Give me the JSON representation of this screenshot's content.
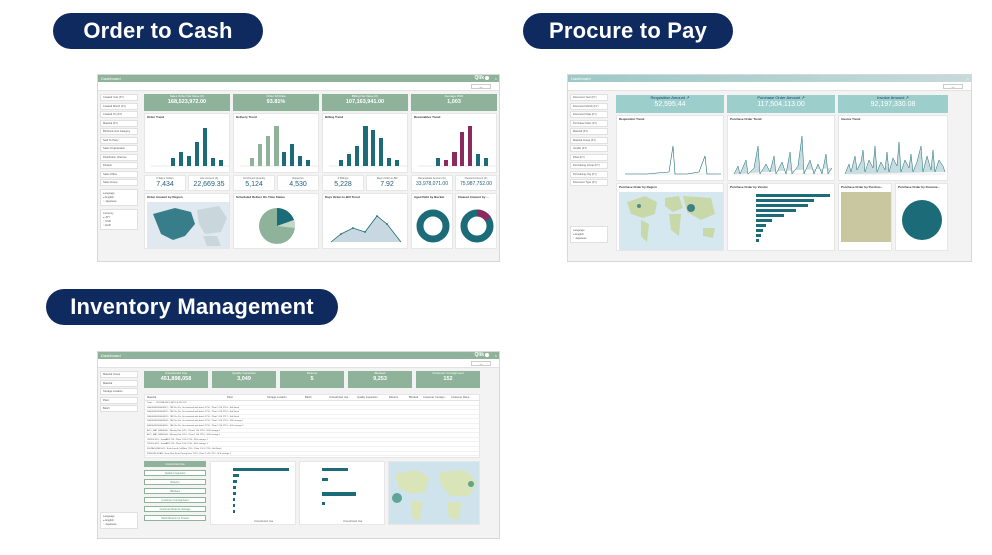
{
  "headings": {
    "otc": "Order to Cash",
    "ptp": "Procure to Pay",
    "inv": "Inventory Management"
  },
  "common": {
    "window_title": "Dashboard",
    "logo": "Qlik",
    "close_glyph": "×",
    "nav_glyph": "‹ ›",
    "language_label": "Language",
    "lang_english": "English",
    "lang_japanese": "Japanese"
  },
  "otc": {
    "filters": [
      "Created Year (FY)",
      "Created Month (FY)",
      "Created On (FY)",
      "Material (FY)",
      "Bill Document Category",
      "Sold To Party",
      "Sales Organization",
      "Distribution Channel",
      "Division",
      "Sales Office",
      "Sales Group"
    ],
    "currency_label": "Currency",
    "currency_opts": [
      "JPY",
      "USD",
      "EUR"
    ],
    "kpis": [
      {
        "label": "Sales Order Net Value (K)",
        "value": "168,523,972.00"
      },
      {
        "label": "Order Fill Rate",
        "value": "93.81%"
      },
      {
        "label": "Billing Net Value (K)",
        "value": "107,163,941.00"
      },
      {
        "label": "Average DSO",
        "value": "1,003"
      }
    ],
    "charts": {
      "order_trend": "Order Trend",
      "delivery_trend": "Delivery Trend",
      "billing_trend": "Billing Trend",
      "receivables_trend": "Receivables Trend",
      "order_by_region": "Order Amount by Region",
      "scheduled_delivery": "Scheduled Deliver On-Time Status",
      "days_order_bill": "Days Order-to-Bill Trend",
      "aged_debt": "Aged Debt by Bucket",
      "cleared_amount": "Cleared Amount by ..."
    },
    "minikpis": [
      {
        "label": "# Sales Orders",
        "value": "7,434"
      },
      {
        "label": "Line Amount (K)",
        "value": "22,669.35"
      },
      {
        "label": "Confirmed Quantity",
        "value": "5,124"
      },
      {
        "label": "Deliveries",
        "value": "4,530"
      },
      {
        "label": "# Billings",
        "value": "5,228"
      },
      {
        "label": "Days Order-to-Bill",
        "value": "7.92"
      },
      {
        "label": "Receivables Amount (K)",
        "value": "33,978,071.00"
      },
      {
        "label": "Cleared Amount (K)",
        "value": "75,987,752.00"
      }
    ]
  },
  "ptp": {
    "filters": [
      "Document Year (FY)",
      "Document Month (FY)",
      "Document Date (FY)",
      "Purchase Order (FY)",
      "Material (FY)",
      "Material Group (FY)",
      "Vendor (FY)",
      "Plant (FY)",
      "Purchasing Group (FY)",
      "Purchasing Org (FY)",
      "Document Type (FY)"
    ],
    "kpis": [
      {
        "label": "Requisition Amount ↗",
        "value": "52,595.44"
      },
      {
        "label": "Purchase Order Amount ↗",
        "value": "117,504,113.00"
      },
      {
        "label": "Invoice Amount ↗",
        "value": "92,197,330.08"
      }
    ],
    "charts": {
      "req_trend": "Requisition Trend",
      "po_trend": "Purchase Order Trend",
      "inv_trend": "Invoice Trend",
      "po_region": "Purchase Order by Region",
      "po_vendor": "Purchase Order by Vendor",
      "po_purchase": "Purchase Order by Purchas...",
      "po_document": "Purchase Order by Docume..."
    }
  },
  "inv": {
    "filters": [
      "Material Group",
      "Material",
      "Storage Location",
      "Plant",
      "Batch"
    ],
    "kpis": [
      {
        "label": "Unrestricted Use",
        "value": "451,898,058"
      },
      {
        "label": "Quality Inspection",
        "value": "3,049"
      },
      {
        "label": "Returns",
        "value": "5"
      },
      {
        "label": "Blocked",
        "value": "9,253"
      },
      {
        "label": "Customer Consignment",
        "value": "152"
      }
    ],
    "table_headers": [
      "Material",
      "Plant",
      "Storage Location",
      "Batch",
      "Unrestricted Use",
      "Quality Inspection",
      "Returns",
      "Blocked",
      "Customer Consign...",
      "Customer Retur..."
    ],
    "table_rows": [
      "Total  ·  ·  ·  451,898,058  3,049  5  9,253  152",
      "00000000000000012 - TEF Fin Pic, Set material with batch  1710 - Plant 1 US  1710 - Std Stock",
      "00000000000000022 - TEF Fin Pic, Set material with batch  1710 - Plant 1 US  1710 - Std Stock",
      "00000000000000031 - TEF Fin Pic, Set material with batch  1710 - Plant 1 US  1717 - Std Stock",
      "00000000000000044 - TEF Fin Pic, Set material with batch  1710 - Plant 1 US  1710 - SLE storage 1",
      "00000000000000055 - TEF Fin Pic, Set material with batch  1710 - Plant 1 US  1710 - SLE storage 2",
      "ACC_MAT_BBS0000 - Moving Unit  1710 - Plant 1 US  1710 - SLE storage 1",
      "ACC_MAT_BBS0004 - Moving Unit  1710 - Plant 1 US  1710 - SLE storage 1",
      "CM-FG-X01 - FoodAB  1710 - Plant 1 US  1710 - SLE storage 1",
      "CM-FG-X02 - FoodAB  1710 - Plant 1 US  1710 - SLE storage 1",
      "FG-PACK-MK-001 - Kraft Lunch Cell/Box  1710 - Plant 1 US  1710 - Std Stock",
      "FIN-EUR-SCAN - Scan Rev, Euro Pricing Item  1710 - Plant 1 US  1710 - SLE storage 1"
    ],
    "buttons": [
      "Unrestricted Use",
      "Quality Inspection",
      "Returns",
      "Blocked",
      "Customer Consignment",
      "Customer Returns Storage",
      "Stock Returns in Transit"
    ],
    "bar_axis": "Unrestricted Use"
  }
}
